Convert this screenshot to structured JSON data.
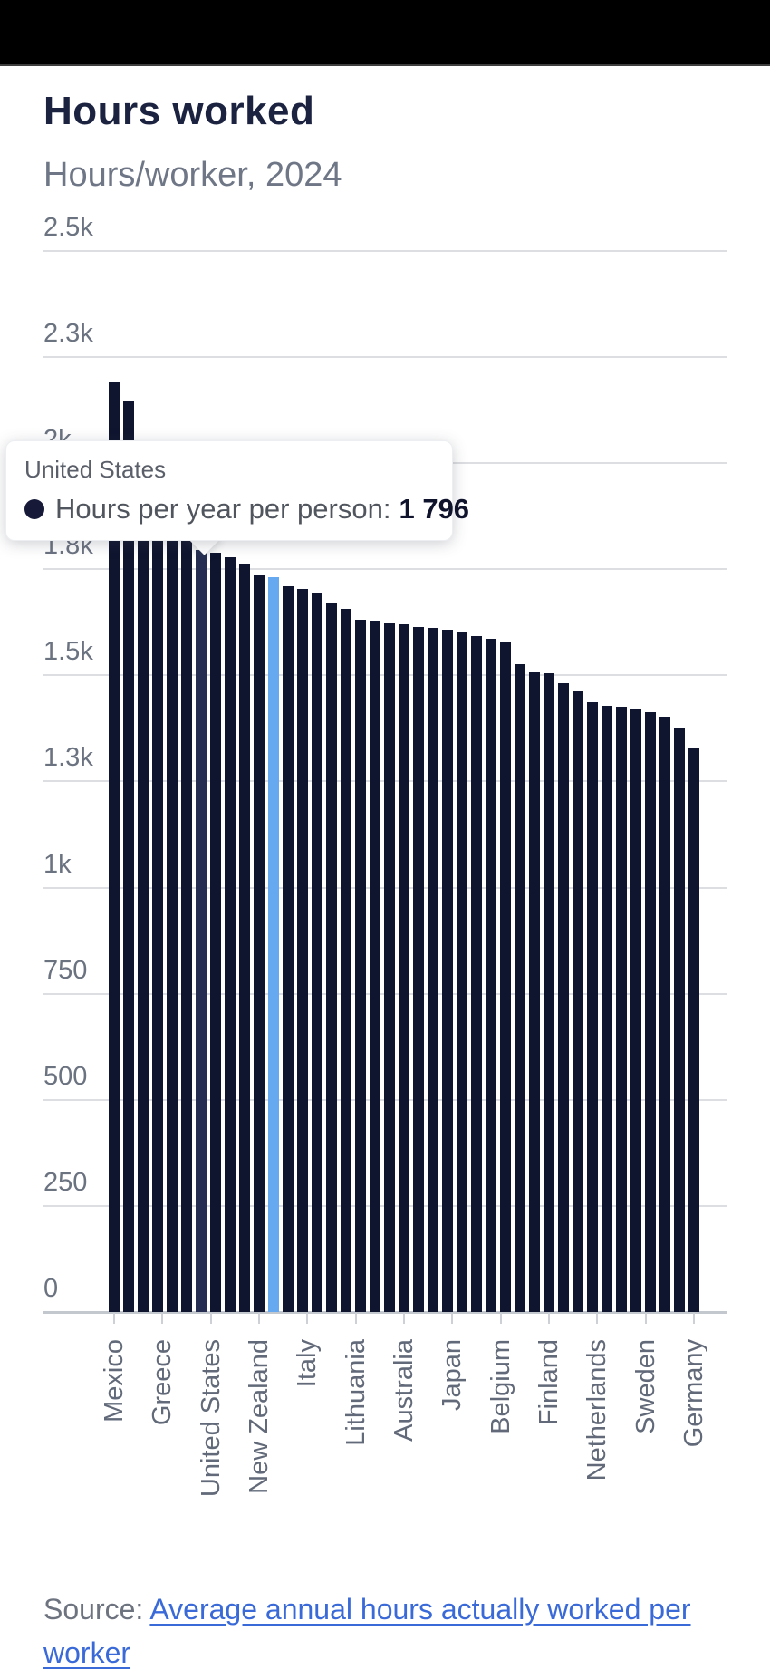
{
  "header": {
    "title": "Hours worked",
    "subtitle": "Hours/worker, 2024"
  },
  "tooltip": {
    "country": "United States",
    "marker_icon": "filled-circle",
    "metric_label": "Hours per year per person:",
    "value": "1 796"
  },
  "source": {
    "prefix": "Source: ",
    "link_text": "Average annual hours actually worked per worker"
  },
  "chart_data": {
    "type": "bar",
    "title": "Hours worked",
    "subtitle": "Hours/worker, 2024",
    "ylabel": "Hours per year per person",
    "ylim": [
      0,
      2500
    ],
    "grid": true,
    "y_ticks": [
      {
        "value": 0,
        "label": "0"
      },
      {
        "value": 250,
        "label": "250"
      },
      {
        "value": 500,
        "label": "500"
      },
      {
        "value": 750,
        "label": "750"
      },
      {
        "value": 1000,
        "label": "1k"
      },
      {
        "value": 1250,
        "label": "1.3k"
      },
      {
        "value": 1500,
        "label": "1.5k"
      },
      {
        "value": 1750,
        "label": "1.8k"
      },
      {
        "value": 2000,
        "label": "2k"
      },
      {
        "value": 2250,
        "label": "2.3k"
      },
      {
        "value": 2500,
        "label": "2.5k"
      }
    ],
    "x_axis_labels": [
      "Mexico",
      "Greece",
      "United States",
      "New Zealand",
      "Italy",
      "Lithuania",
      "Australia",
      "Japan",
      "Belgium",
      "Finland",
      "Netherlands",
      "Sweden",
      "Germany"
    ],
    "values": [
      2190,
      2145,
      2030,
      1945,
      1875,
      1830,
      1796,
      1788,
      1779,
      1764,
      1736,
      1731,
      1710,
      1703,
      1692,
      1671,
      1657,
      1631,
      1629,
      1622,
      1620,
      1614,
      1611,
      1607,
      1603,
      1593,
      1585,
      1580,
      1526,
      1506,
      1504,
      1482,
      1462,
      1437,
      1428,
      1426,
      1422,
      1414,
      1403,
      1376,
      1330
    ],
    "hovered_bar_index": 6,
    "hovered_bar_value": "1 796",
    "highlighted_bar_index": 11,
    "legend_position": "none",
    "colors": {
      "bar": "#0f142f",
      "bar_hovered": "#252e52",
      "bar_highlighted": "#67a9f0",
      "gridline": "#dcdee2",
      "axis_line": "#c3c7ce",
      "title": "#1b2340",
      "subtitle": "#6f7787",
      "tick_label": "#6b7280",
      "category_label": "#626a79",
      "link": "#3a6ad8"
    }
  }
}
